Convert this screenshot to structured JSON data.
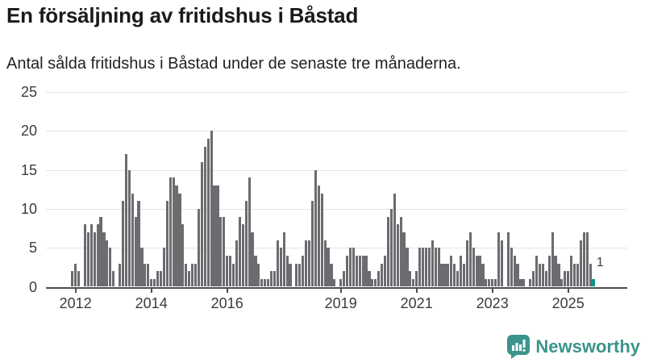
{
  "header": {
    "title": "En försäljning av fritidshus i Båstad",
    "subtitle": "Antal sålda fritidshus i Båstad under de senaste tre månaderna."
  },
  "colors": {
    "bar": "#6b6b70",
    "highlight": "#0f948c",
    "grid": "#e4e4e4",
    "axis": "#4f4f52",
    "tick_text": "#3c3c3c",
    "brand": "#3b948c"
  },
  "chart_data": {
    "type": "bar",
    "title": "En försäljning av fritidshus i Båstad",
    "subtitle": "Antal sålda fritidshus i Båstad under de senaste tre månaderna.",
    "x_unit": "month",
    "start_month": "2011-12",
    "end_month": "2025-09",
    "values": [
      2,
      3,
      2,
      0,
      8,
      7,
      8,
      7,
      8,
      9,
      7,
      6,
      5,
      2,
      0,
      3,
      11,
      17,
      15,
      12,
      9,
      11,
      5,
      3,
      3,
      1,
      1,
      2,
      2,
      5,
      11,
      14,
      14,
      13,
      12,
      8,
      3,
      2,
      3,
      3,
      10,
      16,
      18,
      19,
      20,
      13,
      13,
      9,
      9,
      4,
      4,
      3,
      6,
      9,
      8,
      11,
      14,
      7,
      4,
      3,
      1,
      1,
      1,
      2,
      2,
      6,
      5,
      7,
      4,
      3,
      0,
      3,
      3,
      4,
      6,
      6,
      11,
      15,
      13,
      12,
      6,
      5,
      3,
      1,
      0,
      1,
      2,
      4,
      5,
      5,
      4,
      4,
      4,
      4,
      2,
      1,
      1,
      2,
      3,
      4,
      9,
      10,
      12,
      8,
      9,
      7,
      5,
      2,
      1,
      2,
      5,
      5,
      5,
      5,
      6,
      5,
      5,
      3,
      3,
      3,
      4,
      3,
      2,
      4,
      3,
      6,
      7,
      5,
      4,
      4,
      3,
      1,
      1,
      1,
      1,
      7,
      6,
      0,
      7,
      5,
      4,
      3,
      1,
      1,
      0,
      1,
      2,
      4,
      3,
      3,
      2,
      4,
      7,
      4,
      3,
      1,
      2,
      2,
      4,
      3,
      3,
      6,
      7,
      7,
      3,
      1
    ],
    "highlight_last": true,
    "last_value_label": "1",
    "y_ticks": [
      0,
      5,
      10,
      15,
      20,
      25
    ],
    "ylim": [
      0,
      25
    ],
    "x_tick_labels": [
      "2012",
      "2014",
      "2016",
      "2019",
      "2021",
      "2023",
      "2025"
    ],
    "grid": true,
    "legend": "none"
  },
  "footer": {
    "brand": "Newsworthy"
  }
}
